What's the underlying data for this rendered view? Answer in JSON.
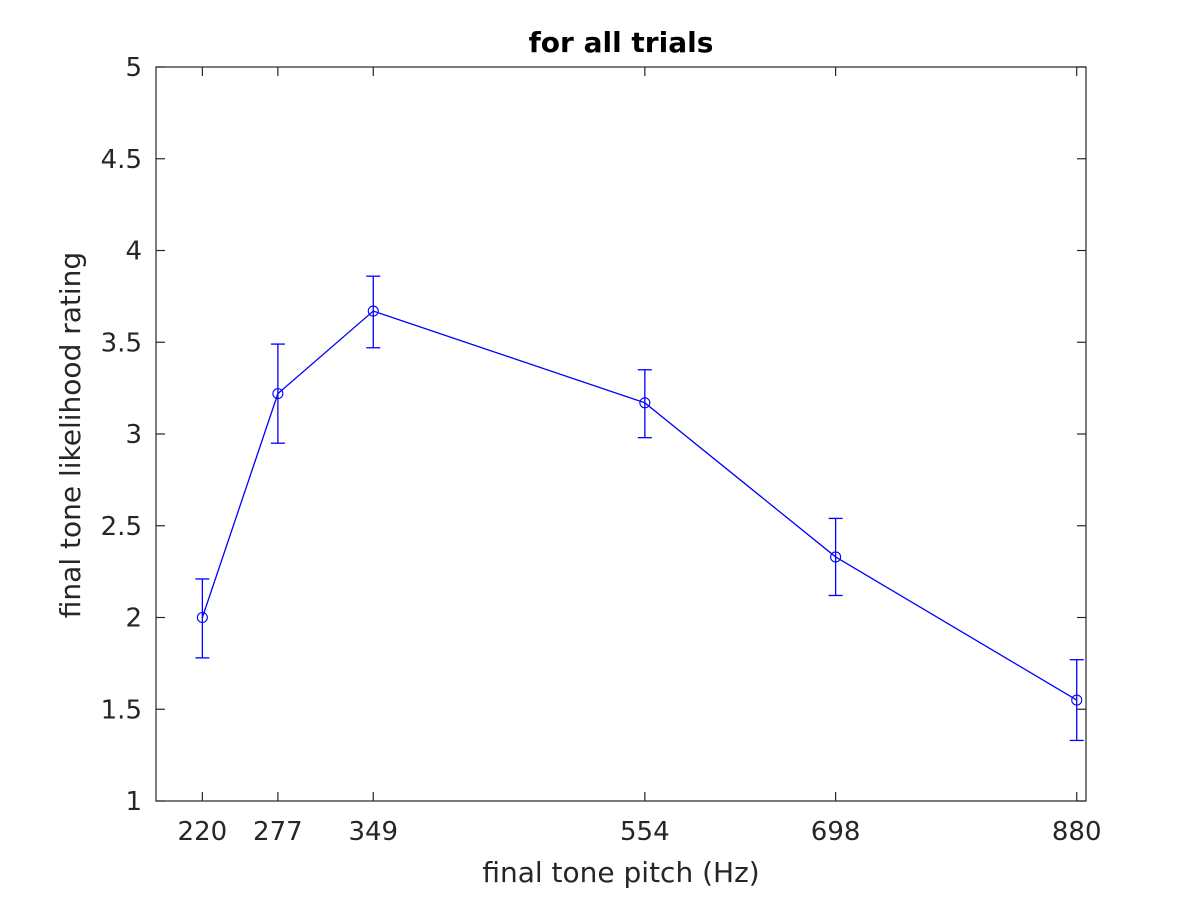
{
  "chart_data": {
    "type": "line",
    "title": "for all trials",
    "xlabel": "final tone pitch (Hz)",
    "ylabel": "final tone likelihood rating",
    "x": [
      220,
      277,
      349,
      554,
      698,
      880
    ],
    "x_tick_labels": [
      "220",
      "277",
      "349",
      "554",
      "698",
      "880"
    ],
    "xlim": [
      185,
      887
    ],
    "ylim": [
      1,
      5
    ],
    "y_ticks": [
      1,
      1.5,
      2,
      2.5,
      3,
      3.5,
      4,
      4.5,
      5
    ],
    "y_tick_labels": [
      "1",
      "1.5",
      "2",
      "2.5",
      "3",
      "3.5",
      "4",
      "4.5",
      "5"
    ],
    "grid": false,
    "series": [
      {
        "values": [
          2.0,
          3.22,
          3.67,
          3.17,
          2.33,
          1.55
        ],
        "error_lower": [
          1.78,
          2.95,
          3.47,
          2.98,
          2.12,
          1.33
        ],
        "error_upper": [
          2.21,
          3.49,
          3.86,
          3.35,
          2.54,
          1.77
        ],
        "color": "#0000ff",
        "marker": "circle"
      }
    ]
  }
}
